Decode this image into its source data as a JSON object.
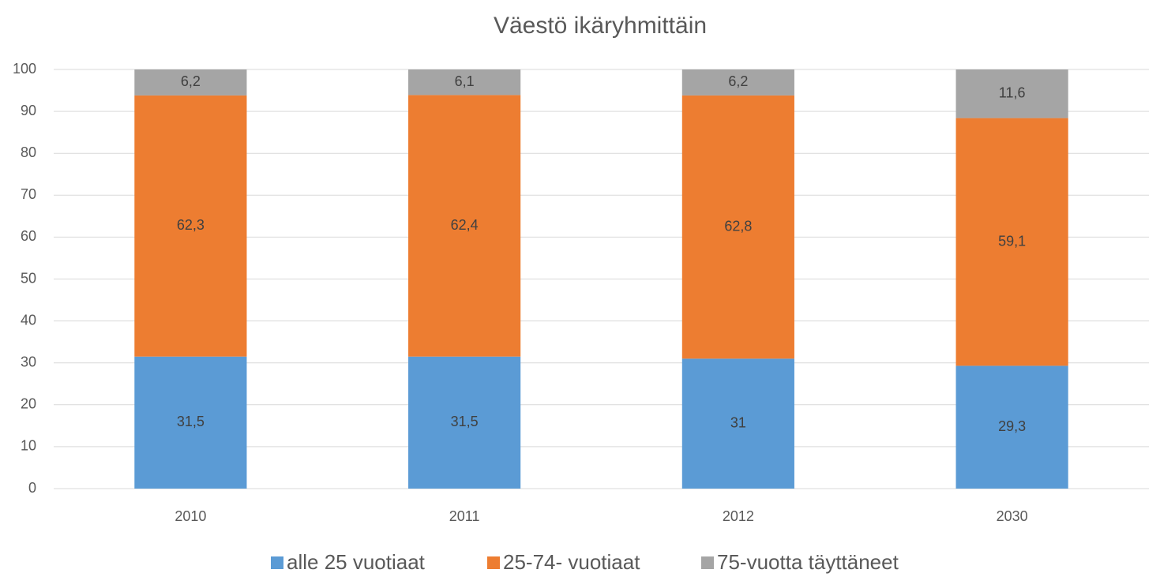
{
  "chart_data": {
    "type": "stacked_bar",
    "title": "Väestö ikäryhmittäin",
    "categories": [
      "2010",
      "2011",
      "2012",
      "2030"
    ],
    "series": [
      {
        "name": "alle 25 vuotiaat",
        "color": "#5b9bd5",
        "values": [
          31.5,
          31.5,
          31,
          29.3
        ],
        "value_labels": [
          "31,5",
          "31,5",
          "31",
          "29,3"
        ]
      },
      {
        "name": "25-74- vuotiaat",
        "color": "#ed7d31",
        "values": [
          62.3,
          62.4,
          62.8,
          59.1
        ],
        "value_labels": [
          "62,3",
          "62,4",
          "62,8",
          "59,1"
        ]
      },
      {
        "name": "75-vuotta täyttäneet",
        "color": "#a5a5a5",
        "values": [
          6.2,
          6.1,
          6.2,
          11.6
        ],
        "value_labels": [
          "6,2",
          "6,1",
          "6,2",
          "11,6"
        ]
      }
    ],
    "ylim": [
      0,
      100
    ],
    "yticks": [
      0,
      10,
      20,
      30,
      40,
      50,
      60,
      70,
      80,
      90,
      100
    ],
    "grid": true,
    "legend": "bottom"
  }
}
